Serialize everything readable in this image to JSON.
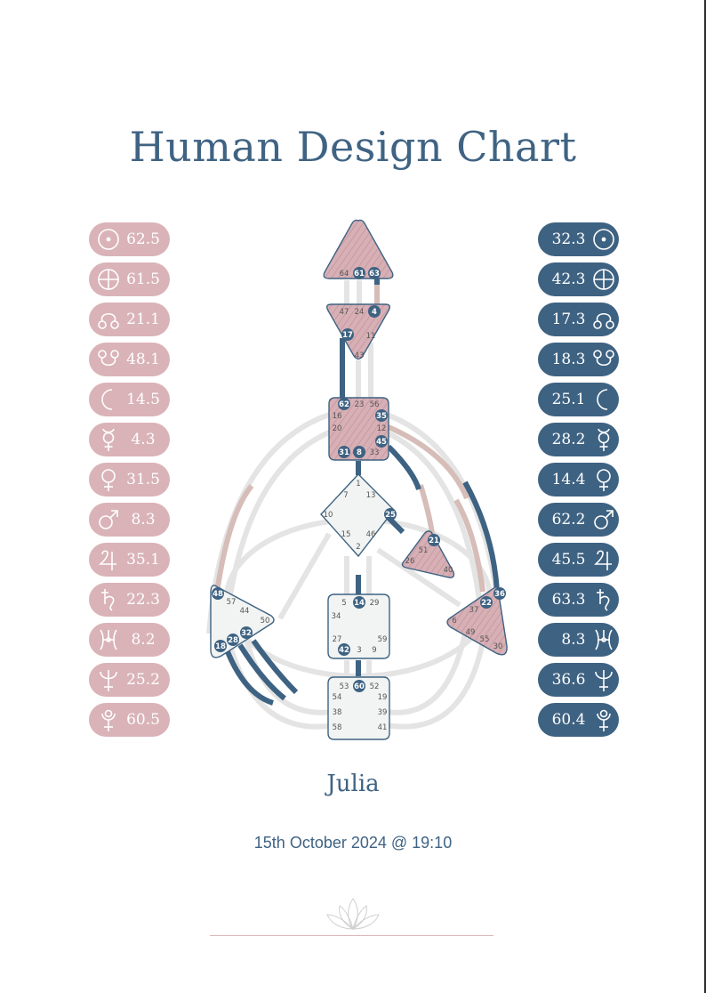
{
  "title": "Human Design Chart",
  "name": "Julia",
  "date": "15th October 2024 @ 19:10",
  "colors": {
    "design": "#d9b3b8",
    "personality": "#3e6282",
    "channel_inactive": "#e6e6e6",
    "center_defined": "#d7b0b6",
    "center_open": "#f1f4f2",
    "outline": "#3e6282"
  },
  "design": [
    {
      "planet": "sun",
      "icon": "sun-icon",
      "value": "62.5"
    },
    {
      "planet": "earth",
      "icon": "earth-icon",
      "value": "61.5"
    },
    {
      "planet": "north-node",
      "icon": "north-node-icon",
      "value": "21.1"
    },
    {
      "planet": "south-node",
      "icon": "south-node-icon",
      "value": "48.1"
    },
    {
      "planet": "moon",
      "icon": "moon-icon",
      "value": "14.5"
    },
    {
      "planet": "mercury",
      "icon": "mercury-icon",
      "value": "4.3"
    },
    {
      "planet": "venus",
      "icon": "venus-icon",
      "value": "31.5"
    },
    {
      "planet": "mars",
      "icon": "mars-icon",
      "value": "8.3"
    },
    {
      "planet": "jupiter",
      "icon": "jupiter-icon",
      "value": "35.1"
    },
    {
      "planet": "saturn",
      "icon": "saturn-icon",
      "value": "22.3"
    },
    {
      "planet": "uranus",
      "icon": "uranus-icon",
      "value": "8.2"
    },
    {
      "planet": "neptune",
      "icon": "neptune-icon",
      "value": "25.2"
    },
    {
      "planet": "pluto",
      "icon": "pluto-icon",
      "value": "60.5"
    }
  ],
  "personality": [
    {
      "planet": "sun",
      "icon": "sun-icon",
      "value": "32.3"
    },
    {
      "planet": "earth",
      "icon": "earth-icon",
      "value": "42.3"
    },
    {
      "planet": "north-node",
      "icon": "north-node-icon",
      "value": "17.3"
    },
    {
      "planet": "south-node",
      "icon": "south-node-icon",
      "value": "18.3"
    },
    {
      "planet": "moon",
      "icon": "moon-icon",
      "value": "25.1"
    },
    {
      "planet": "mercury",
      "icon": "mercury-icon",
      "value": "28.2"
    },
    {
      "planet": "venus",
      "icon": "venus-icon",
      "value": "14.4"
    },
    {
      "planet": "mars",
      "icon": "mars-icon",
      "value": "62.2"
    },
    {
      "planet": "jupiter",
      "icon": "jupiter-icon",
      "value": "45.5"
    },
    {
      "planet": "saturn",
      "icon": "saturn-icon",
      "value": "63.3"
    },
    {
      "planet": "uranus",
      "icon": "uranus-icon",
      "value": "8.3"
    },
    {
      "planet": "neptune",
      "icon": "neptune-icon",
      "value": "36.6"
    },
    {
      "planet": "pluto",
      "icon": "pluto-icon",
      "value": "60.4"
    }
  ],
  "centers": {
    "head": {
      "gates": [
        "64",
        "61",
        "63"
      ],
      "active": [
        "61",
        "63"
      ]
    },
    "ajna": {
      "gates": [
        "47",
        "24",
        "4",
        "17",
        "11",
        "43"
      ],
      "active": [
        "4",
        "17"
      ]
    },
    "throat": {
      "gates": [
        "62",
        "23",
        "56",
        "16",
        "35",
        "20",
        "12",
        "45",
        "31",
        "8",
        "33"
      ],
      "active": [
        "62",
        "35",
        "45",
        "31",
        "8"
      ]
    },
    "g": {
      "gates": [
        "1",
        "7",
        "13",
        "10",
        "25",
        "15",
        "46",
        "2"
      ],
      "active": [
        "25"
      ]
    },
    "ego": {
      "gates": [
        "21",
        "51",
        "26",
        "40"
      ],
      "active": [
        "21"
      ]
    },
    "spleen": {
      "gates": [
        "48",
        "57",
        "44",
        "50",
        "32",
        "28",
        "18"
      ],
      "active": [
        "48",
        "32",
        "28",
        "18"
      ]
    },
    "sacral": {
      "gates": [
        "5",
        "14",
        "29",
        "34",
        "27",
        "59",
        "42",
        "3",
        "9"
      ],
      "active": [
        "14",
        "42"
      ]
    },
    "solar_plexus": {
      "gates": [
        "36",
        "22",
        "37",
        "6",
        "49",
        "55",
        "30"
      ],
      "active": [
        "36",
        "22"
      ]
    },
    "root": {
      "gates": [
        "53",
        "60",
        "52",
        "54",
        "19",
        "38",
        "39",
        "58",
        "41"
      ],
      "active": [
        "60"
      ]
    }
  }
}
